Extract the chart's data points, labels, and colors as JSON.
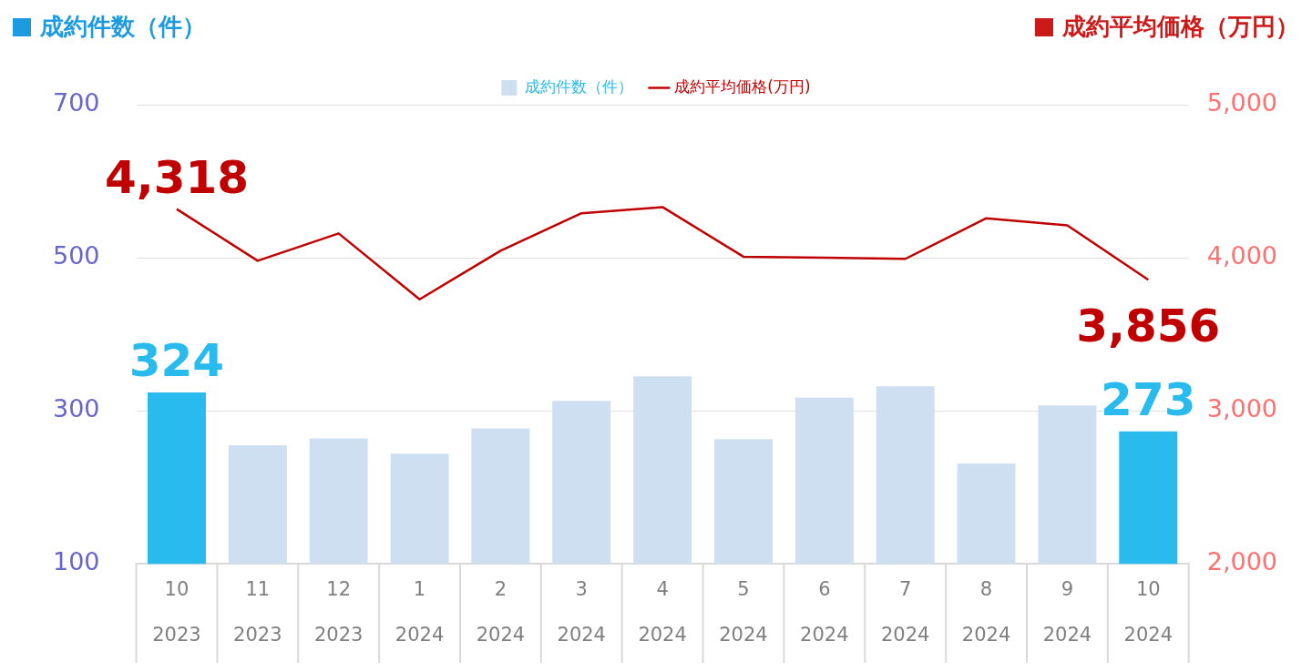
{
  "chart_data": {
    "type": "bar",
    "ylabel": "成約件数（件）",
    "y2label": "成約平均価格（万円）",
    "categories": [
      "10\n2023",
      "11\n2023",
      "12\n2023",
      "1\n2024",
      "2\n2024",
      "3\n2024",
      "4\n2024",
      "5\n2024",
      "6\n2024",
      "7\n2024",
      "8\n2024",
      "9\n2024",
      "10\n2024"
    ],
    "series": [
      {
        "name": "成約件数（件）",
        "color": "#cfdff2",
        "colors": [
          "#29bbee",
          "#cfdff2",
          "#cfdff2",
          "#cfdff2",
          "#cfdff2",
          "#cfdff2",
          "#cfdff2",
          "#cfdff2",
          "#cfdff2",
          "#cfdff2",
          "#cfdff2",
          "#cfdff2",
          "#29bbee"
        ],
        "values": [
          324,
          255,
          264,
          244,
          277,
          313,
          345,
          263,
          317,
          332,
          231,
          307,
          273
        ],
        "value_labels": [
          "324",
          null,
          null,
          null,
          null,
          null,
          null,
          null,
          null,
          null,
          null,
          null,
          "273"
        ]
      },
      {
        "name": "成約平均価格(万円)",
        "type": "line",
        "axis": "y2",
        "color": "#c00000",
        "marker": "none",
        "values": [
          4318,
          3980,
          4159,
          3728,
          4046,
          4291,
          4331,
          4007,
          4000,
          3993,
          4258,
          4212,
          3856
        ],
        "value_labels": [
          "4,318",
          null,
          null,
          null,
          null,
          null,
          null,
          null,
          null,
          null,
          null,
          null,
          "3,856"
        ]
      }
    ],
    "ylim": [
      100,
      700
    ],
    "yticks": [
      100,
      300,
      500,
      700
    ],
    "y2lim": [
      2000,
      5000
    ],
    "y2ticks": [
      {
        "value": 2000,
        "label": "2,000"
      },
      {
        "value": 3000,
        "label": "3,000"
      },
      {
        "value": 4000,
        "label": "4,000"
      },
      {
        "value": 5000,
        "label": "5,000"
      }
    ],
    "grid": "y",
    "legend": "top"
  }
}
